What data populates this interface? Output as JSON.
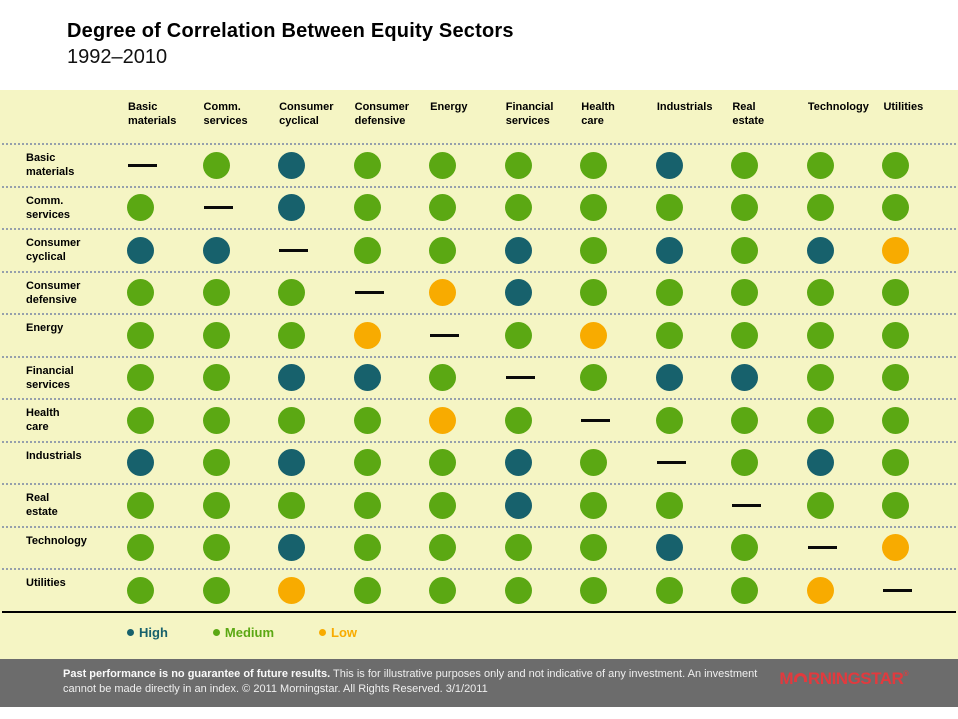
{
  "title": "Degree of Correlation Between Equity Sectors",
  "subtitle": "1992–2010",
  "sectors_display": [
    "Basic\nmaterials",
    "Comm.\nservices",
    "Consumer\ncyclical",
    "Consumer\ndefensive",
    "Energy",
    "Financial\nservices",
    "Health\ncare",
    "Industrials",
    "Real\nestate",
    "Technology",
    "Utilities"
  ],
  "chart_data": {
    "type": "heatmap",
    "title": "Degree of Correlation Between Equity Sectors",
    "subtitle": "1992–2010",
    "categories": [
      "Basic materials",
      "Comm. services",
      "Consumer cyclical",
      "Consumer defensive",
      "Energy",
      "Financial services",
      "Health care",
      "Industrials",
      "Real estate",
      "Technology",
      "Utilities"
    ],
    "levels_key": {
      "high": "High",
      "medium": "Medium",
      "low": "Low",
      "self": "—"
    },
    "matrix": [
      [
        "self",
        "medium",
        "high",
        "medium",
        "medium",
        "medium",
        "medium",
        "high",
        "medium",
        "medium",
        "medium"
      ],
      [
        "medium",
        "self",
        "high",
        "medium",
        "medium",
        "medium",
        "medium",
        "medium",
        "medium",
        "medium",
        "medium"
      ],
      [
        "high",
        "high",
        "self",
        "medium",
        "medium",
        "high",
        "medium",
        "high",
        "medium",
        "high",
        "low"
      ],
      [
        "medium",
        "medium",
        "medium",
        "self",
        "low",
        "high",
        "medium",
        "medium",
        "medium",
        "medium",
        "medium"
      ],
      [
        "medium",
        "medium",
        "medium",
        "low",
        "self",
        "medium",
        "low",
        "medium",
        "medium",
        "medium",
        "medium"
      ],
      [
        "medium",
        "medium",
        "high",
        "high",
        "medium",
        "self",
        "medium",
        "high",
        "high",
        "medium",
        "medium"
      ],
      [
        "medium",
        "medium",
        "medium",
        "medium",
        "low",
        "medium",
        "self",
        "medium",
        "medium",
        "medium",
        "medium"
      ],
      [
        "high",
        "medium",
        "high",
        "medium",
        "medium",
        "high",
        "medium",
        "self",
        "medium",
        "high",
        "medium"
      ],
      [
        "medium",
        "medium",
        "medium",
        "medium",
        "medium",
        "high",
        "medium",
        "medium",
        "self",
        "medium",
        "medium"
      ],
      [
        "medium",
        "medium",
        "high",
        "medium",
        "medium",
        "medium",
        "medium",
        "high",
        "medium",
        "self",
        "low"
      ],
      [
        "medium",
        "medium",
        "low",
        "medium",
        "medium",
        "medium",
        "medium",
        "medium",
        "medium",
        "low",
        "self"
      ]
    ],
    "legend_position": "bottom"
  },
  "legend": {
    "items": [
      {
        "label": "High",
        "color": "#17616C"
      },
      {
        "label": "Medium",
        "color": "#5BA813"
      },
      {
        "label": "Low",
        "color": "#F8AB00"
      }
    ]
  },
  "colors": {
    "panel_background": "#F5F5C4",
    "high": "#17616C",
    "medium": "#5BA813",
    "low": "#F8AB00",
    "dotted_rule": "#96A0AC",
    "footer_background": "#6C6C6C",
    "logo_red": "#E13A3E"
  },
  "footer": {
    "bold_text": "Past performance is no guarantee of future results.",
    "text": " This is for illustrative purposes only and not indicative of any investment. An investment cannot be made directly in an index. © 2011 Morningstar. All Rights Reserved. 3/1/2011",
    "logo_prefix": "M",
    "logo_suffix": "RNINGSTAR",
    "logo_registered": "®"
  }
}
